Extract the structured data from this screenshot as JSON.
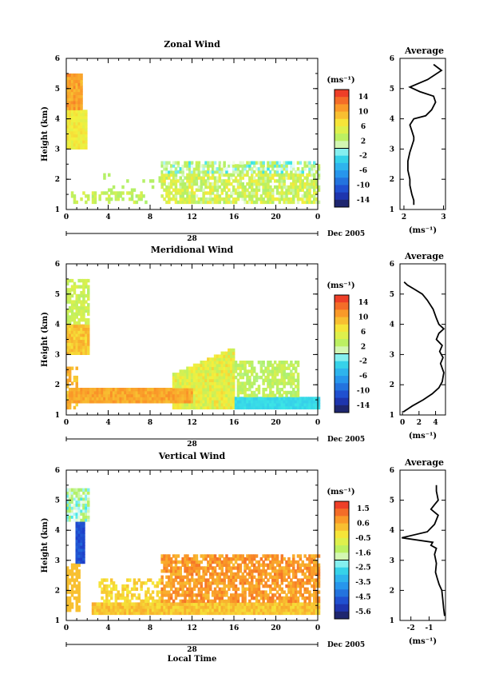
{
  "chart_data": [
    {
      "type": "heatmap",
      "title": "Zonal Wind",
      "ylabel": "Height (km)",
      "x_ticks": [
        "0",
        "4",
        "8",
        "12",
        "16",
        "20",
        "0"
      ],
      "y_ticks": [
        "1",
        "2",
        "3",
        "4",
        "5",
        "6"
      ],
      "xlim": [
        0,
        24
      ],
      "ylim": [
        1,
        6
      ],
      "date_day": "28",
      "date_label": "Dec 2005",
      "colorbar": {
        "unit": "(ms⁻¹)",
        "range": [
          -14,
          14
        ],
        "ticks": [
          "14",
          "10",
          "6",
          "2",
          "-2",
          "-6",
          "-10",
          "-14"
        ]
      },
      "average_profile": {
        "title": "Average",
        "unit": "(ms⁻¹)",
        "x_ticks": [
          "2",
          "3"
        ],
        "xlim": [
          1.9,
          3.05
        ],
        "y_ticks": [
          "1",
          "2",
          "3",
          "4",
          "5",
          "6"
        ],
        "x": [
          2.25,
          2.25,
          2.2,
          2.15,
          2.15,
          2.1,
          2.1,
          2.15,
          2.2,
          2.25,
          2.25,
          2.2,
          2.15,
          2.25,
          2.55,
          2.7,
          2.8,
          2.75,
          2.4,
          2.15,
          2.6,
          2.95,
          2.75
        ],
        "y": [
          1.15,
          1.3,
          1.5,
          1.8,
          2.0,
          2.3,
          2.6,
          2.9,
          3.1,
          3.3,
          3.4,
          3.6,
          3.8,
          4.0,
          4.1,
          4.3,
          4.55,
          4.75,
          4.9,
          5.05,
          5.3,
          5.6,
          5.8
        ]
      }
    },
    {
      "type": "heatmap",
      "title": "Meridional Wind",
      "ylabel": "Height (km)",
      "x_ticks": [
        "0",
        "4",
        "8",
        "12",
        "16",
        "20",
        "0"
      ],
      "y_ticks": [
        "1",
        "2",
        "3",
        "4",
        "5",
        "6"
      ],
      "xlim": [
        0,
        24
      ],
      "ylim": [
        1,
        6
      ],
      "date_day": "28",
      "date_label": "Dec 2005",
      "colorbar": {
        "unit": "(ms⁻¹)",
        "range": [
          -14,
          14
        ],
        "ticks": [
          "14",
          "10",
          "6",
          "2",
          "-2",
          "-6",
          "-10",
          "-14"
        ]
      },
      "average_profile": {
        "title": "Average",
        "unit": "(ms⁻¹)",
        "x_ticks": [
          "0",
          "2",
          "4"
        ],
        "xlim": [
          -0.3,
          5.2
        ],
        "y_ticks": [
          "1",
          "2",
          "3",
          "4",
          "5",
          "6"
        ],
        "x": [
          0.1,
          1.2,
          2.5,
          3.6,
          4.4,
          4.8,
          5.0,
          4.6,
          4.9,
          4.5,
          4.8,
          4.1,
          4.4,
          5.0,
          4.4,
          4.1,
          3.7,
          3.0,
          2.4,
          1.5,
          0.6,
          0.2
        ],
        "y": [
          1.1,
          1.3,
          1.5,
          1.7,
          1.9,
          2.1,
          2.4,
          2.7,
          2.9,
          3.1,
          3.3,
          3.5,
          3.7,
          3.85,
          4.0,
          4.2,
          4.5,
          4.8,
          5.0,
          5.15,
          5.3,
          5.4
        ]
      }
    },
    {
      "type": "heatmap",
      "title": "Vertical Wind",
      "ylabel": "Height (km)",
      "xlabel": "Local Time",
      "x_ticks": [
        "0",
        "4",
        "8",
        "12",
        "16",
        "20",
        "0"
      ],
      "y_ticks": [
        "1",
        "2",
        "3",
        "4",
        "5",
        "6"
      ],
      "xlim": [
        0,
        24
      ],
      "ylim": [
        1,
        6
      ],
      "date_day": "28",
      "date_label": "Dec 2005",
      "colorbar": {
        "unit": "(ms⁻¹)",
        "range": [
          -5.6,
          1.6
        ],
        "ticks": [
          "1.5",
          "0.6",
          "-0.5",
          "-1.6",
          "-2.5",
          "-3.5",
          "-4.5",
          "-5.6"
        ]
      },
      "average_profile": {
        "title": "Average",
        "unit": "(ms⁻¹)",
        "x_ticks": [
          "-2",
          "-1"
        ],
        "xlim": [
          -2.6,
          -0.1
        ],
        "y_ticks": [
          "1",
          "2",
          "3",
          "4",
          "5",
          "6"
        ],
        "x": [
          -0.15,
          -0.2,
          -0.25,
          -0.3,
          -0.45,
          -0.55,
          -0.65,
          -0.6,
          -0.7,
          -0.6,
          -0.9,
          -0.8,
          -2.5,
          -1.1,
          -0.7,
          -0.5,
          -0.9,
          -0.7,
          -0.5,
          -0.6,
          -0.6
        ],
        "y": [
          1.15,
          1.4,
          1.7,
          2.0,
          2.2,
          2.4,
          2.6,
          2.9,
          3.2,
          3.4,
          3.5,
          3.6,
          3.75,
          3.95,
          4.2,
          4.5,
          4.7,
          4.85,
          5.0,
          5.3,
          5.5
        ]
      }
    }
  ]
}
